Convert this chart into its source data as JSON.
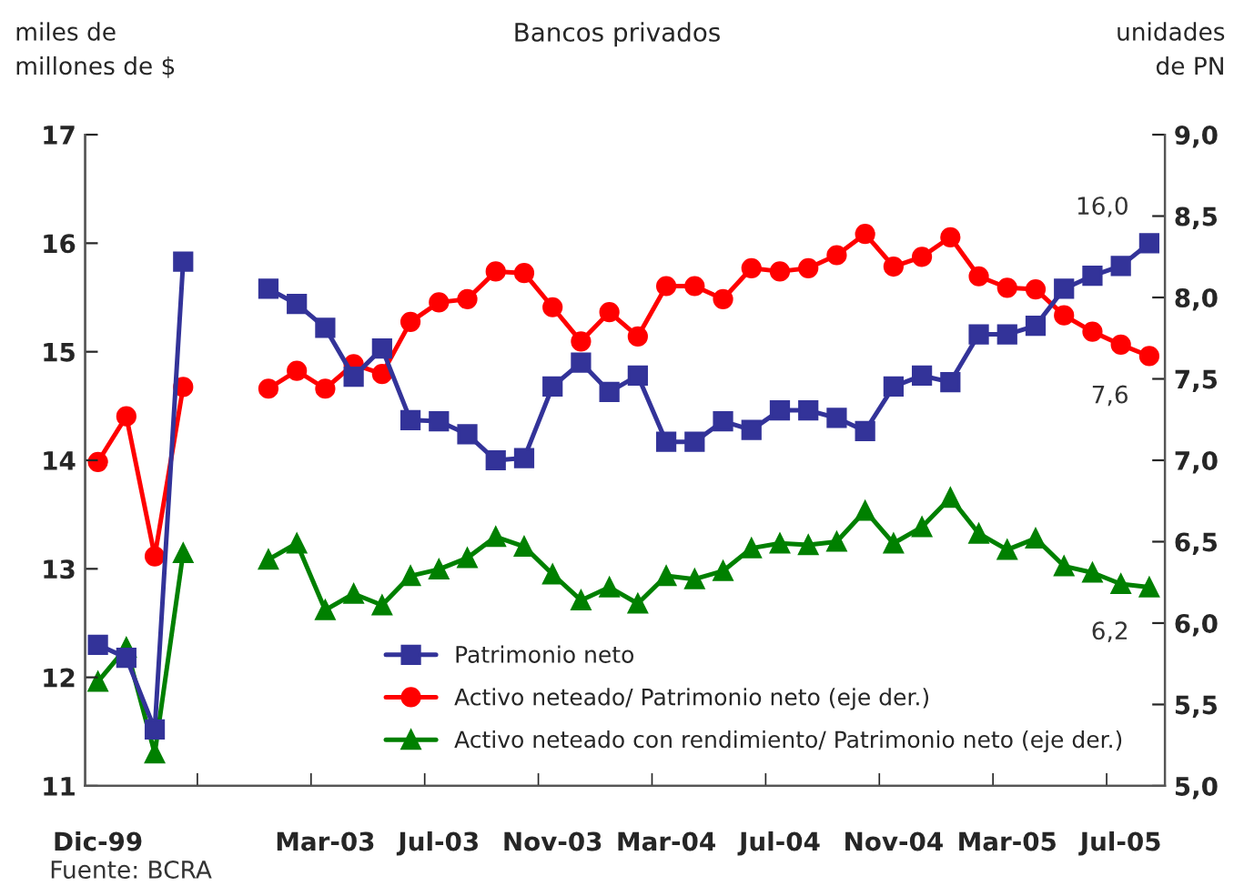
{
  "chart_data": {
    "type": "line",
    "title": "Bancos privados",
    "ylabel": "miles de\nmillones de $",
    "y2label": "unidades\nde PN",
    "categories": [
      "Dic-99",
      null,
      null,
      null,
      null,
      null,
      null,
      null,
      "Mar-03",
      null,
      null,
      null,
      "Jul-03",
      null,
      null,
      null,
      "Nov-03",
      null,
      null,
      null,
      "Mar-04",
      null,
      null,
      null,
      "Jul-04",
      null,
      null,
      null,
      "Nov-04",
      null,
      null,
      null,
      "Mar-05",
      null,
      null,
      null,
      "Jul-05",
      null
    ],
    "series": [
      {
        "name": "Patrimonio neto",
        "color": "#333399",
        "marker": "square",
        "values": [
          12.3,
          12.18,
          11.52,
          15.83,
          null,
          null,
          15.58,
          15.44,
          15.22,
          14.77,
          15.03,
          14.37,
          14.36,
          14.24,
          14.0,
          14.02,
          14.68,
          14.9,
          14.63,
          14.78,
          14.17,
          14.17,
          14.36,
          14.28,
          14.46,
          14.46,
          14.39,
          14.27,
          14.68,
          14.78,
          14.72,
          15.16,
          15.16,
          15.24,
          15.58,
          15.7,
          15.79,
          16.0
        ]
      },
      {
        "name": "Activo neteado/ Patrimonio neto (eje der.)",
        "color": "#ff0000",
        "marker": "circle",
        "axis": "y2",
        "values": [
          6.99,
          7.27,
          6.41,
          7.45,
          null,
          null,
          7.44,
          7.55,
          7.44,
          7.59,
          7.53,
          7.85,
          7.97,
          7.99,
          8.16,
          8.15,
          7.94,
          7.73,
          7.91,
          7.76,
          8.07,
          8.07,
          7.99,
          8.18,
          8.16,
          8.18,
          8.26,
          8.39,
          8.19,
          8.25,
          8.37,
          8.13,
          8.06,
          8.05,
          7.89,
          7.79,
          7.71,
          7.64
        ]
      },
      {
        "name": "Activo neteado con rendimiento/ Patrimonio neto (eje der.)",
        "color": "#008000",
        "marker": "triangle",
        "axis": "y2",
        "values": [
          5.64,
          5.85,
          5.2,
          6.43,
          null,
          null,
          6.39,
          6.49,
          6.08,
          6.18,
          6.11,
          6.29,
          6.33,
          6.4,
          6.53,
          6.47,
          6.3,
          6.14,
          6.22,
          6.12,
          6.29,
          6.27,
          6.32,
          6.46,
          6.49,
          6.48,
          6.5,
          6.69,
          6.49,
          6.59,
          6.77,
          6.55,
          6.45,
          6.52,
          6.35,
          6.31,
          6.24,
          6.22
        ]
      }
    ],
    "ylim": [
      11,
      17
    ],
    "yticks": [
      11,
      12,
      13,
      14,
      15,
      16,
      17
    ],
    "y2lim": [
      5.0,
      9.0
    ],
    "y2ticks": [
      {
        "value": 5.0,
        "label": "5,0"
      },
      {
        "value": 5.5,
        "label": "5,5"
      },
      {
        "value": 6.0,
        "label": "6,0"
      },
      {
        "value": 6.5,
        "label": "6,5"
      },
      {
        "value": 7.0,
        "label": "7,0"
      },
      {
        "value": 7.5,
        "label": "7,5"
      },
      {
        "value": 8.0,
        "label": "8,0"
      },
      {
        "value": 8.5,
        "label": "8,5"
      },
      {
        "value": 9.0,
        "label": "9,0"
      }
    ],
    "annotations": [
      "16,0",
      "7,6",
      "6,2",
      "Fuente: BCRA"
    ],
    "legend": "bottom",
    "grid": false,
    "line_style": "solid"
  }
}
